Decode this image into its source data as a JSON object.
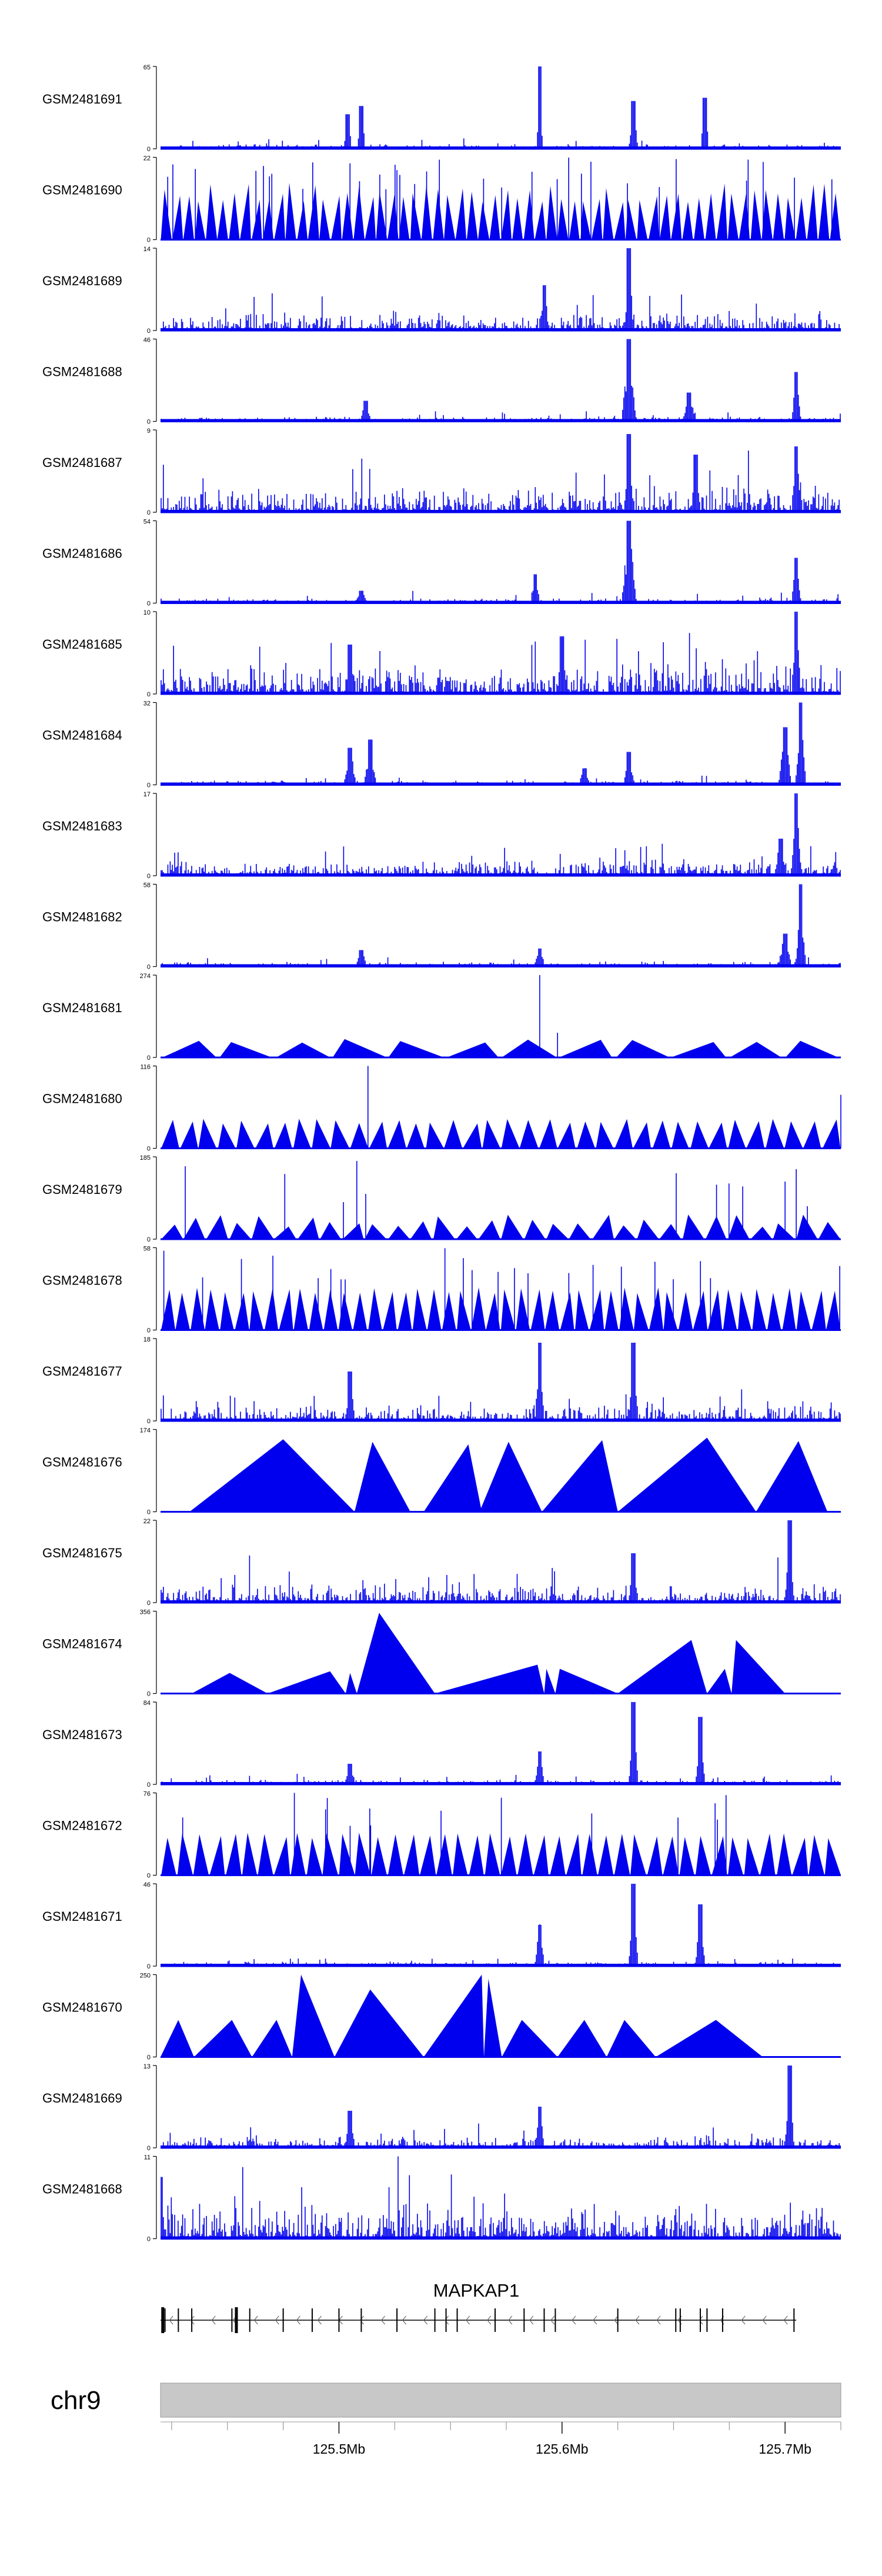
{
  "chart_data": {
    "type": "area",
    "title": "",
    "genome_range_mb": [
      125.42,
      125.725
    ],
    "tracks": [
      {
        "name": "GSM2481691",
        "ymax": 65,
        "style": "spiky",
        "seed": 11,
        "peaks": [
          [
            125.504,
            0.15,
            0.42
          ],
          [
            125.51,
            0.2,
            0.52
          ],
          [
            125.59,
            0.0,
            1.0
          ],
          [
            125.632,
            0.25,
            0.58
          ],
          [
            125.664,
            0.2,
            0.62
          ]
        ]
      },
      {
        "name": "GSM2481690",
        "ymax": 22,
        "style": "tri",
        "seed": 12,
        "n": 60,
        "tri_hmin": 0.45,
        "tri_hmax": 0.7,
        "spikes": 34
      },
      {
        "name": "GSM2481689",
        "ymax": 14,
        "style": "spiky",
        "seed": 13,
        "base": 0.25,
        "peaks": [
          [
            125.63,
            0.3,
            1.0
          ],
          [
            125.592,
            0.3,
            0.55
          ]
        ]
      },
      {
        "name": "GSM2481688",
        "ymax": 46,
        "style": "spiky",
        "seed": 14,
        "peaks": [
          [
            125.512,
            0.3,
            0.25
          ],
          [
            125.63,
            0.8,
            1.0
          ],
          [
            125.657,
            0.5,
            0.35
          ],
          [
            125.705,
            0.3,
            0.6
          ]
        ]
      },
      {
        "name": "GSM2481687",
        "ymax": 9,
        "style": "spiky",
        "seed": 15,
        "base": 0.35,
        "peaks": [
          [
            125.63,
            0.3,
            0.95
          ],
          [
            125.66,
            0.3,
            0.7
          ],
          [
            125.705,
            0.3,
            0.8
          ]
        ]
      },
      {
        "name": "GSM2481686",
        "ymax": 54,
        "style": "spiky",
        "seed": 16,
        "peaks": [
          [
            125.51,
            0.3,
            0.15
          ],
          [
            125.588,
            0.3,
            0.35
          ],
          [
            125.63,
            0.8,
            1.0
          ],
          [
            125.705,
            0.3,
            0.55
          ]
        ]
      },
      {
        "name": "GSM2481685",
        "ymax": 10,
        "style": "spiky",
        "seed": 17,
        "base": 0.4,
        "peaks": [
          [
            125.505,
            0.3,
            0.6
          ],
          [
            125.6,
            0.3,
            0.7
          ],
          [
            125.705,
            0.3,
            1.0
          ]
        ]
      },
      {
        "name": "GSM2481684",
        "ymax": 32,
        "style": "spiky",
        "seed": 18,
        "peaks": [
          [
            125.505,
            0.5,
            0.45
          ],
          [
            125.514,
            0.5,
            0.55
          ],
          [
            125.61,
            0.3,
            0.2
          ],
          [
            125.63,
            0.4,
            0.4
          ],
          [
            125.7,
            0.6,
            0.7
          ],
          [
            125.707,
            0.4,
            1.0
          ]
        ]
      },
      {
        "name": "GSM2481683",
        "ymax": 17,
        "style": "spiky",
        "seed": 19,
        "base": 0.2,
        "peaks": [
          [
            125.705,
            0.4,
            1.0
          ],
          [
            125.698,
            0.5,
            0.45
          ]
        ]
      },
      {
        "name": "GSM2481682",
        "ymax": 58,
        "style": "spiky",
        "seed": 20,
        "peaks": [
          [
            125.51,
            0.3,
            0.2
          ],
          [
            125.59,
            0.3,
            0.22
          ],
          [
            125.7,
            0.6,
            0.4
          ],
          [
            125.707,
            0.4,
            1.0
          ]
        ]
      },
      {
        "name": "GSM2481681",
        "ymax": 274,
        "style": "tri",
        "seed": 21,
        "n": 12,
        "tri_hmin": 0.18,
        "tri_hmax": 0.24,
        "spikes": 2,
        "spike_pos": [
          [
            125.59,
            1.0
          ],
          [
            125.598,
            0.3
          ]
        ]
      },
      {
        "name": "GSM2481680",
        "ymax": 116,
        "style": "tri",
        "seed": 22,
        "n": 36,
        "tri_hmin": 0.3,
        "tri_hmax": 0.36,
        "spikes": 2,
        "spike_pos": [
          [
            125.513,
            1.0
          ],
          [
            125.725,
            0.65
          ]
        ]
      },
      {
        "name": "GSM2481679",
        "ymax": 185,
        "style": "tri",
        "seed": 23,
        "n": 30,
        "tri_hmin": 0.15,
        "tri_hmax": 0.3,
        "spikes": 12,
        "spike_pos": [
          [
            125.502,
            0.45
          ],
          [
            125.508,
            0.95
          ],
          [
            125.512,
            0.55
          ],
          [
            125.7,
            0.7
          ],
          [
            125.705,
            0.85
          ],
          [
            125.71,
            0.4
          ]
        ]
      },
      {
        "name": "GSM2481678",
        "ymax": 58,
        "style": "tri",
        "seed": 24,
        "n": 46,
        "tri_hmin": 0.45,
        "tri_hmax": 0.52,
        "spikes": 22
      },
      {
        "name": "GSM2481677",
        "ymax": 18,
        "style": "spiky",
        "seed": 25,
        "base": 0.2,
        "peaks": [
          [
            125.505,
            0.3,
            0.6
          ],
          [
            125.59,
            0.3,
            0.95
          ],
          [
            125.632,
            0.3,
            0.95
          ]
        ]
      },
      {
        "name": "GSM2481676",
        "ymax": 174,
        "style": "tri",
        "seed": 26,
        "manual": [
          [
            125.433,
            125.475,
            125.507,
            0.88
          ],
          [
            125.507,
            125.515,
            125.532,
            0.85
          ],
          [
            125.538,
            125.558,
            125.564,
            0.82
          ],
          [
            125.563,
            125.576,
            125.591,
            0.85
          ],
          [
            125.591,
            125.618,
            125.625,
            0.87
          ],
          [
            125.625,
            125.665,
            125.687,
            0.9
          ],
          [
            125.687,
            125.706,
            125.719,
            0.86
          ]
        ]
      },
      {
        "name": "GSM2481675",
        "ymax": 22,
        "style": "spiky",
        "seed": 27,
        "base": 0.25,
        "peaks": [
          [
            125.632,
            0.3,
            0.6
          ],
          [
            125.702,
            0.3,
            1.0
          ]
        ]
      },
      {
        "name": "GSM2481674",
        "ymax": 356,
        "style": "tri",
        "seed": 28,
        "manual": [
          [
            125.434,
            125.451,
            125.468,
            0.25
          ],
          [
            125.468,
            125.496,
            125.503,
            0.27
          ],
          [
            125.503,
            125.505,
            125.508,
            0.25
          ],
          [
            125.508,
            125.518,
            125.543,
            0.98
          ],
          [
            125.543,
            125.589,
            125.592,
            0.35
          ],
          [
            125.592,
            125.593,
            125.597,
            0.3
          ],
          [
            125.597,
            125.599,
            125.625,
            0.3
          ],
          [
            125.625,
            125.658,
            125.665,
            0.65
          ],
          [
            125.665,
            125.673,
            125.676,
            0.3
          ],
          [
            125.676,
            125.678,
            125.7,
            0.65
          ]
        ]
      },
      {
        "name": "GSM2481673",
        "ymax": 84,
        "style": "spiky",
        "seed": 29,
        "peaks": [
          [
            125.505,
            0.3,
            0.25
          ],
          [
            125.59,
            0.3,
            0.4
          ],
          [
            125.632,
            0.3,
            1.0
          ],
          [
            125.662,
            0.3,
            0.82
          ]
        ]
      },
      {
        "name": "GSM2481672",
        "ymax": 76,
        "style": "tri",
        "seed": 30,
        "n": 42,
        "tri_hmin": 0.45,
        "tri_hmax": 0.52,
        "spikes": 14,
        "spike_pos": [
          [
            125.48,
            1.0
          ],
          [
            125.494,
            0.8
          ],
          [
            125.505,
            0.6
          ],
          [
            125.652,
            0.7
          ]
        ]
      },
      {
        "name": "GSM2481671",
        "ymax": 46,
        "style": "spiky",
        "seed": 31,
        "peaks": [
          [
            125.59,
            0.3,
            0.5
          ],
          [
            125.632,
            0.3,
            1.0
          ],
          [
            125.662,
            0.3,
            0.75
          ]
        ]
      },
      {
        "name": "GSM2481670",
        "ymax": 250,
        "style": "tri",
        "seed": 32,
        "manual": [
          [
            125.42,
            125.428,
            125.435,
            0.45
          ],
          [
            125.435,
            125.452,
            125.461,
            0.45
          ],
          [
            125.461,
            125.472,
            125.479,
            0.45
          ],
          [
            125.479,
            125.483,
            125.498,
            1.0
          ],
          [
            125.498,
            125.514,
            125.538,
            0.82
          ],
          [
            125.538,
            125.564,
            125.565,
            1.0
          ],
          [
            125.565,
            125.567,
            125.573,
            0.95
          ],
          [
            125.573,
            125.582,
            125.598,
            0.45
          ],
          [
            125.598,
            125.61,
            125.62,
            0.45
          ],
          [
            125.62,
            125.628,
            125.642,
            0.45
          ],
          [
            125.642,
            125.669,
            125.69,
            0.45
          ]
        ]
      },
      {
        "name": "GSM2481669",
        "ymax": 13,
        "style": "spiky",
        "seed": 33,
        "base": 0.15,
        "peaks": [
          [
            125.702,
            0.3,
            1.0
          ],
          [
            125.505,
            0.3,
            0.45
          ],
          [
            125.59,
            0.3,
            0.5
          ]
        ]
      },
      {
        "name": "GSM2481668",
        "ymax": 11,
        "style": "spiky",
        "seed": 34,
        "base": 0.45,
        "peaks": [
          [
            125.42,
            0.3,
            0.75
          ]
        ]
      }
    ],
    "gene": {
      "name": "MAPKAP1",
      "strand": "-",
      "start_mb": 125.42,
      "end_mb": 125.705,
      "exon_positions_mb": [
        125.421,
        125.422,
        125.428,
        125.434,
        125.452,
        125.454,
        125.46,
        125.475,
        125.488,
        125.5,
        125.51,
        125.526,
        125.543,
        125.548,
        125.553,
        125.57,
        125.583,
        125.592,
        125.597,
        125.625,
        125.651,
        125.653,
        125.662,
        125.665,
        125.672,
        125.704
      ]
    },
    "chromosome": {
      "label": "chr9"
    },
    "x_axis": {
      "ticks_mb": [
        125.5,
        125.6,
        125.7
      ],
      "tick_labels": [
        "125.5Mb",
        "125.6Mb",
        "125.7Mb"
      ]
    },
    "colors": {
      "fill": "#0000ee",
      "axis": "#000000",
      "ideogram": "#c8c8c8",
      "gene": "#000000"
    }
  }
}
